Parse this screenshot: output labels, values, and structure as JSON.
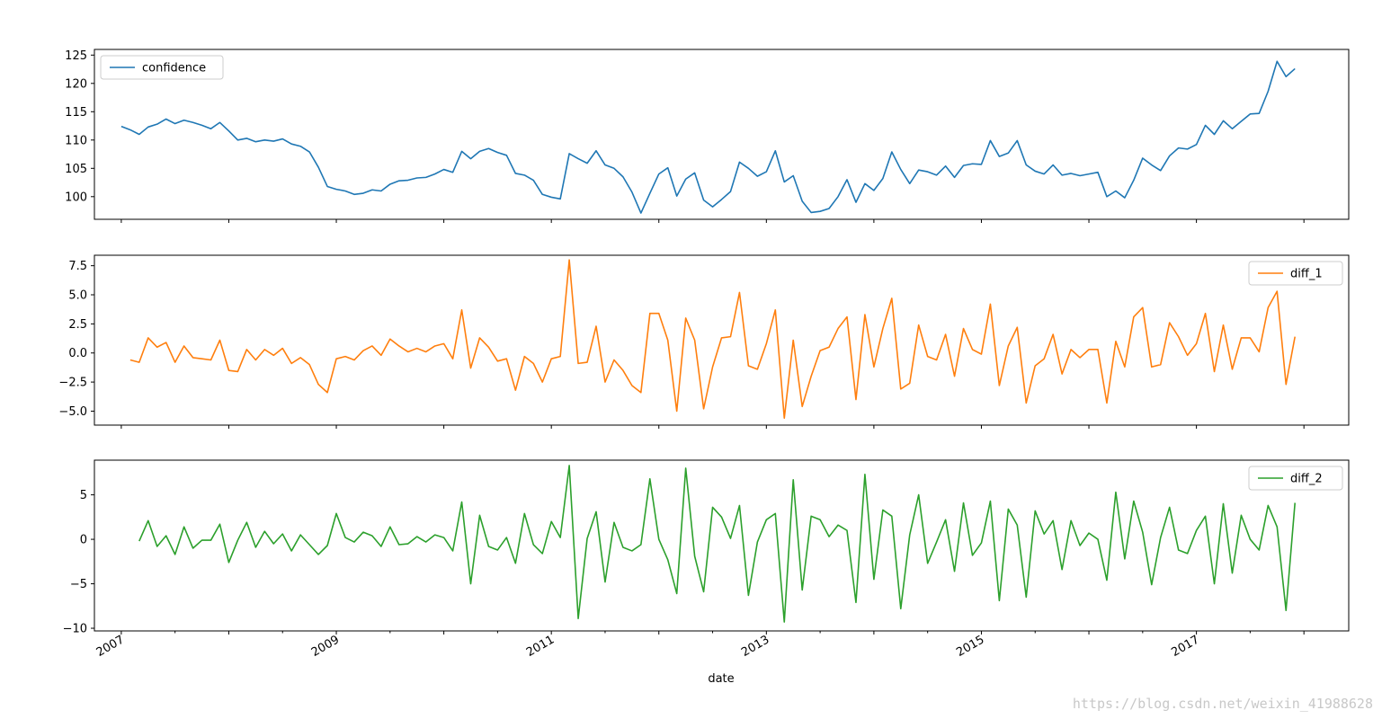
{
  "watermark": "https://blog.csdn.net/weixin_41988628",
  "chart_data": {
    "type": "line",
    "xlabel": "date",
    "x_ticks": [
      "2007",
      "2009",
      "2011",
      "2013",
      "2015",
      "2017"
    ],
    "x_start": "2007-01",
    "x_range": [
      "2006-10",
      "2018-06"
    ],
    "grid": false,
    "panels": [
      {
        "name": "confidence",
        "color": "#1f77b4",
        "legend_position": "upper-left",
        "ylim": [
          96,
          126
        ],
        "yticks": [
          100,
          105,
          110,
          115,
          120,
          125
        ],
        "ytick_labels": [
          "100",
          "105",
          "110",
          "115",
          "120",
          "125"
        ],
        "values": [
          112.4,
          111.8,
          111.0,
          112.3,
          112.8,
          113.7,
          112.9,
          113.5,
          113.1,
          112.6,
          112.0,
          113.1,
          111.6,
          110.0,
          110.3,
          109.7,
          110.0,
          109.8,
          110.2,
          109.3,
          108.9,
          107.9,
          105.2,
          101.8,
          101.3,
          101.0,
          100.4,
          100.6,
          101.2,
          101.0,
          102.2,
          102.8,
          102.9,
          103.3,
          103.4,
          104.0,
          104.8,
          104.3,
          108.0,
          106.7,
          108.0,
          108.5,
          107.8,
          107.3,
          104.1,
          103.8,
          102.9,
          100.4,
          99.9,
          99.6,
          107.6,
          106.7,
          105.9,
          108.1,
          105.6,
          105.0,
          103.5,
          100.8,
          97.1,
          100.6,
          104.0,
          105.1,
          100.1,
          103.1,
          104.2,
          99.4,
          98.2,
          99.5,
          100.9,
          106.1,
          105.0,
          103.6,
          104.4,
          108.1,
          102.6,
          103.7,
          99.2,
          97.2,
          97.4,
          97.9,
          100.0,
          103.0,
          99.0,
          102.3,
          101.1,
          103.2,
          107.9,
          104.8,
          102.3,
          104.7,
          104.4,
          103.8,
          105.4,
          103.4,
          105.5,
          105.8,
          105.7,
          109.9,
          107.1,
          107.7,
          109.9,
          105.6,
          104.5,
          104.0,
          105.6,
          103.8,
          104.1,
          103.7,
          104.0,
          104.3,
          100.0,
          101.0,
          99.8,
          102.9,
          106.8,
          105.6,
          104.6,
          107.2,
          108.6,
          108.4,
          109.2,
          112.6,
          111.0,
          113.4,
          112.0,
          113.3,
          114.6,
          114.7,
          118.6,
          123.9,
          121.2,
          122.6
        ]
      },
      {
        "name": "diff_1",
        "color": "#ff7f0e",
        "legend_position": "upper-right",
        "ylim": [
          -6.2,
          8.4
        ],
        "yticks": [
          -5.0,
          -2.5,
          0.0,
          2.5,
          5.0,
          7.5
        ],
        "ytick_labels": [
          "−5.0",
          "−2.5",
          "0.0",
          "2.5",
          "5.0",
          "7.5"
        ],
        "values": [
          null,
          -0.6,
          -0.8,
          1.3,
          0.5,
          0.9,
          -0.8,
          0.6,
          -0.4,
          -0.5,
          -0.6,
          1.1,
          -1.5,
          -1.6,
          0.3,
          -0.6,
          0.3,
          -0.2,
          0.4,
          -0.9,
          -0.4,
          -1.0,
          -2.7,
          -3.4,
          -0.5,
          -0.3,
          -0.6,
          0.2,
          0.6,
          -0.2,
          1.2,
          0.6,
          0.1,
          0.4,
          0.1,
          0.6,
          0.8,
          -0.5,
          3.7,
          -1.3,
          1.3,
          0.5,
          -0.7,
          -0.5,
          -3.2,
          -0.3,
          -0.9,
          -2.5,
          -0.5,
          -0.3,
          8.0,
          -0.9,
          -0.8,
          2.3,
          -2.5,
          -0.6,
          -1.5,
          -2.8,
          -3.4,
          3.4,
          3.4,
          1.1,
          -5.0,
          3.0,
          1.1,
          -4.8,
          -1.2,
          1.3,
          1.4,
          5.2,
          -1.1,
          -1.4,
          0.8,
          3.7,
          -5.6,
          1.1,
          -4.6,
          -2.0,
          0.2,
          0.5,
          2.1,
          3.1,
          -4.0,
          3.3,
          -1.2,
          2.1,
          4.7,
          -3.1,
          -2.6,
          2.4,
          -0.3,
          -0.6,
          1.6,
          -2.0,
          2.1,
          0.3,
          -0.1,
          4.2,
          -2.8,
          0.6,
          2.2,
          -4.3,
          -1.1,
          -0.5,
          1.6,
          -1.8,
          0.3,
          -0.4,
          0.3,
          0.3,
          -4.3,
          1.0,
          -1.2,
          3.1,
          3.9,
          -1.2,
          -1.0,
          2.6,
          1.4,
          -0.2,
          0.8,
          3.4,
          -1.6,
          2.4,
          -1.4,
          1.3,
          1.3,
          0.1,
          3.9,
          5.3,
          -2.7,
          1.4
        ]
      },
      {
        "name": "diff_2",
        "color": "#2ca02c",
        "legend_position": "upper-right",
        "ylim": [
          -10.3,
          8.9
        ],
        "yticks": [
          -10,
          -5,
          0,
          5
        ],
        "ytick_labels": [
          "−10",
          "−5",
          "0",
          "5"
        ],
        "values": [
          null,
          null,
          -0.2,
          2.1,
          -0.8,
          0.4,
          -1.7,
          1.4,
          -1.0,
          -0.1,
          -0.1,
          1.7,
          -2.6,
          -0.1,
          1.9,
          -0.9,
          0.9,
          -0.5,
          0.6,
          -1.3,
          0.5,
          -0.6,
          -1.7,
          -0.7,
          2.9,
          0.2,
          -0.3,
          0.8,
          0.4,
          -0.8,
          1.4,
          -0.6,
          -0.5,
          0.3,
          -0.3,
          0.5,
          0.2,
          -1.3,
          4.2,
          -5.0,
          2.7,
          -0.8,
          -1.2,
          0.2,
          -2.7,
          2.9,
          -0.6,
          -1.6,
          2.0,
          0.2,
          8.3,
          -8.9,
          0.1,
          3.1,
          -4.8,
          1.9,
          -0.9,
          -1.3,
          -0.6,
          6.8,
          0.0,
          -2.3,
          -6.1,
          8.0,
          -1.9,
          -5.9,
          3.6,
          2.5,
          0.1,
          3.8,
          -6.3,
          -0.3,
          2.2,
          2.9,
          -9.3,
          6.7,
          -5.7,
          2.6,
          2.2,
          0.3,
          1.6,
          1.0,
          -7.1,
          7.3,
          -4.5,
          3.3,
          2.6,
          -7.8,
          0.5,
          5.0,
          -2.7,
          -0.3,
          2.2,
          -3.6,
          4.1,
          -1.8,
          -0.4,
          4.3,
          -6.9,
          3.4,
          1.6,
          -6.5,
          3.2,
          0.6,
          2.1,
          -3.4,
          2.1,
          -0.7,
          0.7,
          0.0,
          -4.6,
          5.3,
          -2.2,
          4.3,
          0.8,
          -5.1,
          0.2,
          3.6,
          -1.2,
          -1.6,
          1.0,
          2.6,
          -5.0,
          4.0,
          -3.8,
          2.7,
          0.0,
          -1.2,
          3.8,
          1.4,
          -8.0,
          4.1
        ]
      }
    ]
  }
}
